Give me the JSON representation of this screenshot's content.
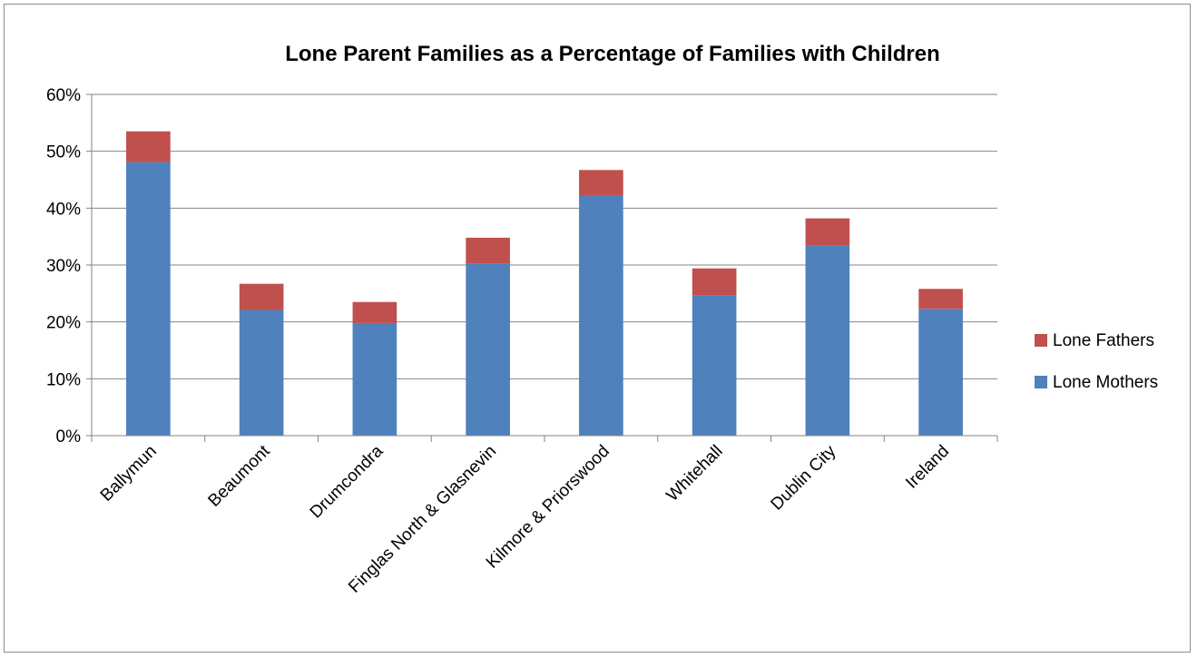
{
  "chart_data": {
    "type": "bar",
    "stacked": true,
    "title": "Lone Parent Families as a Percentage of Families with Children",
    "xlabel": "",
    "ylabel": "",
    "categories": [
      "Ballymun",
      "Beaumont",
      "Drumcondra",
      "Finglas North & Glasnevin",
      "Kilmore & Priorswood",
      "Whitehall",
      "Dublin City",
      "Ireland"
    ],
    "series": [
      {
        "name": "Lone Mothers",
        "color": "#4f81bd",
        "values": [
          0.481,
          0.221,
          0.198,
          0.303,
          0.422,
          0.246,
          0.335,
          0.223
        ]
      },
      {
        "name": "Lone Fathers",
        "color": "#c0504d",
        "values": [
          0.054,
          0.046,
          0.037,
          0.045,
          0.045,
          0.048,
          0.047,
          0.035
        ]
      }
    ],
    "ylim": [
      0,
      0.6
    ],
    "yticks": [
      "0%",
      "10%",
      "20%",
      "30%",
      "40%",
      "50%",
      "60%"
    ],
    "grid": true,
    "legend_position": "right",
    "legend_order": [
      "Lone Fathers",
      "Lone Mothers"
    ]
  }
}
